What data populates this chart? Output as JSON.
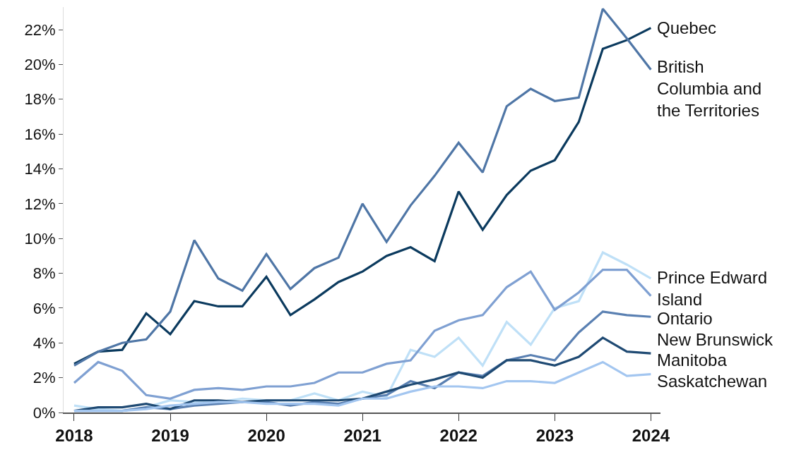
{
  "chart_data": {
    "type": "line",
    "x": [
      2018,
      2018.25,
      2018.5,
      2018.75,
      2019,
      2019.25,
      2019.5,
      2019.75,
      2020,
      2020.25,
      2020.5,
      2020.75,
      2021,
      2021.25,
      2021.5,
      2021.75,
      2022,
      2022.25,
      2022.5,
      2022.75,
      2023,
      2023.25,
      2023.5,
      2023.75,
      2024
    ],
    "series": [
      {
        "name": "Quebec",
        "color": "#0b3a5e",
        "values": [
          2.8,
          3.5,
          3.6,
          5.7,
          4.5,
          6.4,
          6.1,
          6.1,
          7.8,
          5.6,
          6.5,
          7.5,
          8.1,
          9.0,
          9.5,
          8.7,
          12.7,
          10.5,
          12.5,
          13.9,
          14.5,
          16.7,
          20.9,
          21.4,
          22.1
        ]
      },
      {
        "name": "British Columbia and the Territories",
        "color": "#4f76a6",
        "values": [
          2.7,
          3.5,
          4.0,
          4.2,
          5.8,
          9.9,
          7.7,
          7.0,
          9.1,
          7.1,
          8.3,
          8.9,
          12.0,
          9.8,
          11.9,
          13.6,
          15.5,
          13.8,
          17.6,
          18.6,
          17.9,
          18.1,
          23.2,
          21.5,
          19.7
        ]
      },
      {
        "name": "Prince Edward Island",
        "color": "#bfe0f7",
        "values": [
          0.4,
          0.2,
          0.1,
          0.3,
          0.7,
          0.6,
          0.6,
          0.8,
          0.7,
          0.7,
          1.1,
          0.7,
          1.2,
          0.9,
          3.6,
          3.2,
          4.3,
          2.7,
          5.2,
          3.9,
          6.0,
          6.4,
          9.2,
          8.5,
          7.7
        ]
      },
      {
        "name": "Ontario",
        "color": "#7fa0d2",
        "values": [
          1.7,
          2.9,
          2.4,
          1.0,
          0.8,
          1.3,
          1.4,
          1.3,
          1.5,
          1.5,
          1.7,
          2.3,
          2.3,
          2.8,
          3.0,
          4.7,
          5.3,
          5.6,
          7.2,
          8.1,
          5.9,
          6.9,
          8.2,
          8.2,
          6.7
        ]
      },
      {
        "name": "New Brunswick",
        "color": "#5a80b2",
        "values": [
          0.1,
          0.1,
          0.1,
          0.3,
          0.2,
          0.4,
          0.5,
          0.6,
          0.6,
          0.4,
          0.6,
          0.5,
          0.8,
          1.0,
          1.8,
          1.4,
          2.3,
          2.1,
          3.0,
          3.3,
          3.0,
          4.6,
          5.8,
          5.6,
          5.5
        ]
      },
      {
        "name": "Manitoba",
        "color": "#1f4a73",
        "values": [
          0.1,
          0.3,
          0.3,
          0.5,
          0.2,
          0.7,
          0.7,
          0.6,
          0.7,
          0.7,
          0.7,
          0.7,
          0.8,
          1.2,
          1.6,
          1.9,
          2.3,
          2.0,
          3.0,
          3.0,
          2.7,
          3.2,
          4.3,
          3.5,
          3.4
        ]
      },
      {
        "name": "Saskatchewan",
        "color": "#a3c6f0",
        "values": [
          0.1,
          0.1,
          0.1,
          0.2,
          0.4,
          0.5,
          0.6,
          0.6,
          0.5,
          0.5,
          0.5,
          0.4,
          0.8,
          0.8,
          1.2,
          1.5,
          1.5,
          1.4,
          1.8,
          1.8,
          1.7,
          2.3,
          2.9,
          2.1,
          2.2
        ]
      }
    ],
    "xlim": [
      2017.89,
      2024.1
    ],
    "xticks": [
      2018,
      2019,
      2020,
      2021,
      2022,
      2023,
      2024
    ],
    "ylim": [
      0,
      23.3
    ],
    "yticks": [
      {
        "value": 0,
        "label": "0%"
      },
      {
        "value": 2,
        "label": "2%"
      },
      {
        "value": 4,
        "label": "4%"
      },
      {
        "value": 6,
        "label": "6%"
      },
      {
        "value": 8,
        "label": "8%"
      },
      {
        "value": 10,
        "label": "10%"
      },
      {
        "value": 12,
        "label": "12%"
      },
      {
        "value": 14,
        "label": "14%"
      },
      {
        "value": 16,
        "label": "16%"
      },
      {
        "value": 18,
        "label": "18%"
      },
      {
        "value": 20,
        "label": "20%"
      },
      {
        "value": 22,
        "label": "22%"
      }
    ],
    "legend": false,
    "marker": "none",
    "line_style": "solid"
  }
}
